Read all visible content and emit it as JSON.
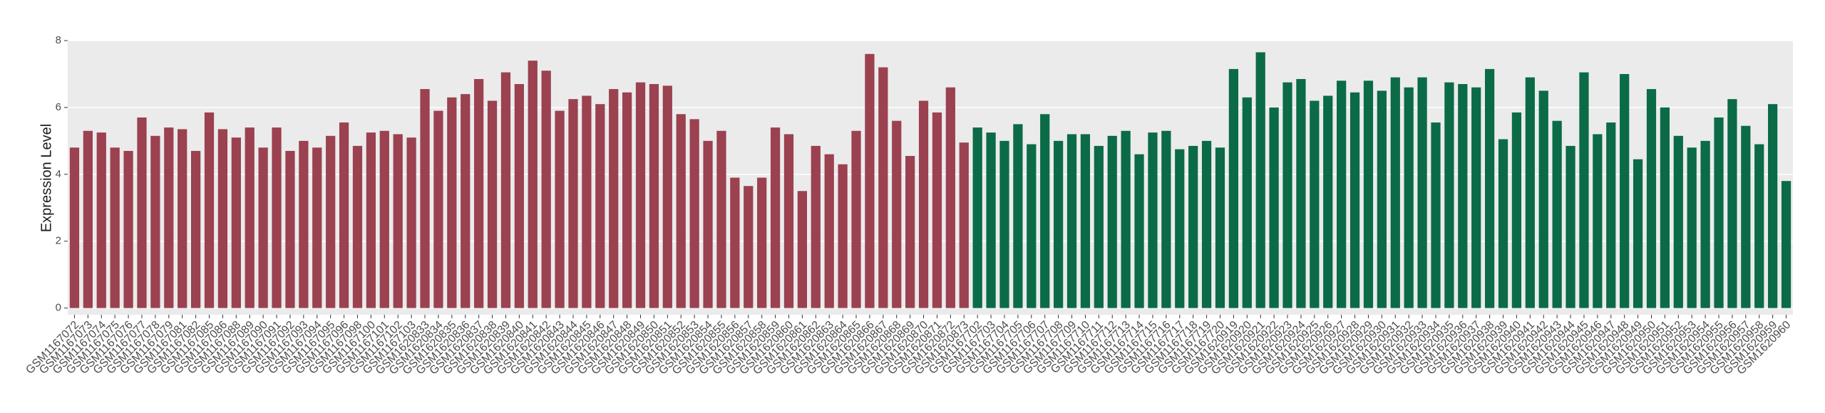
{
  "chart_data": {
    "type": "bar",
    "y_label": "Expression Level",
    "categories": [
      "GSM1167072",
      "GSM1167073",
      "GSM1167074",
      "GSM1167075",
      "GSM1167076",
      "GSM1167077",
      "GSM1167078",
      "GSM1167079",
      "GSM1167081",
      "GSM1167082",
      "GSM1167085",
      "GSM1167086",
      "GSM1167088",
      "GSM1167089",
      "GSM1167090",
      "GSM1167091",
      "GSM1167092",
      "GSM1167093",
      "GSM1167094",
      "GSM1167095",
      "GSM1167096",
      "GSM1167098",
      "GSM1167100",
      "GSM1167101",
      "GSM1167102",
      "GSM1167103",
      "GSM1620833",
      "GSM1620834",
      "GSM1620835",
      "GSM1620836",
      "GSM1620837",
      "GSM1620838",
      "GSM1620839",
      "GSM1620840",
      "GSM1620841",
      "GSM1620842",
      "GSM1620843",
      "GSM1620844",
      "GSM1620845",
      "GSM1620846",
      "GSM1620847",
      "GSM1620848",
      "GSM1620849",
      "GSM1620850",
      "GSM1620851",
      "GSM1620852",
      "GSM1620853",
      "GSM1620854",
      "GSM1620855",
      "GSM1620856",
      "GSM1620857",
      "GSM1620858",
      "GSM1620859",
      "GSM1620860",
      "GSM1620861",
      "GSM1620862",
      "GSM1620863",
      "GSM1620864",
      "GSM1620865",
      "GSM1620866",
      "GSM1620867",
      "GSM1620868",
      "GSM1620869",
      "GSM1620870",
      "GSM1620871",
      "GSM1620872",
      "GSM1620873",
      "GSM1167702",
      "GSM1167703",
      "GSM1167704",
      "GSM1167705",
      "GSM1167706",
      "GSM1167707",
      "GSM1167708",
      "GSM1167709",
      "GSM1167710",
      "GSM1167711",
      "GSM1167712",
      "GSM1167713",
      "GSM1167714",
      "GSM1167715",
      "GSM1167716",
      "GSM1167717",
      "GSM1167718",
      "GSM1167719",
      "GSM1167720",
      "GSM1620919",
      "GSM1620920",
      "GSM1620921",
      "GSM1620922",
      "GSM1620923",
      "GSM1620924",
      "GSM1620925",
      "GSM1620926",
      "GSM1620927",
      "GSM1620928",
      "GSM1620929",
      "GSM1620930",
      "GSM1620931",
      "GSM1620932",
      "GSM1620933",
      "GSM1620934",
      "GSM1620935",
      "GSM1620936",
      "GSM1620937",
      "GSM1620938",
      "GSM1620939",
      "GSM1620940",
      "GSM1620941",
      "GSM1620942",
      "GSM1620943",
      "GSM1620944",
      "GSM1620945",
      "GSM1620946",
      "GSM1620947",
      "GSM1620948",
      "GSM1620949",
      "GSM1620950",
      "GSM1620951",
      "GSM1620952",
      "GSM1620953",
      "GSM1620954",
      "GSM1620955",
      "GSM1620956",
      "GSM1620957",
      "GSM1620958",
      "GSM1620959",
      "GSM1620960"
    ],
    "series": [
      {
        "color": "#9b4150",
        "values": [
          4.8,
          5.3,
          5.25,
          4.8,
          4.7,
          5.7,
          5.15,
          5.4,
          5.35,
          4.7,
          5.85,
          5.35,
          5.1,
          5.4,
          4.8,
          5.4,
          4.7,
          5.0,
          4.8,
          5.15,
          5.55,
          4.85,
          5.25,
          5.3,
          5.2,
          5.1,
          6.55,
          5.9,
          6.3,
          6.4,
          6.85,
          6.2,
          7.05,
          6.7,
          7.4,
          7.1,
          5.9,
          6.25,
          6.35,
          6.1,
          6.55,
          6.45,
          6.75,
          6.7,
          6.65,
          5.8,
          5.65,
          5.0,
          5.3,
          3.9,
          3.65,
          3.9,
          5.4,
          5.2,
          3.5,
          4.85,
          4.6,
          4.3,
          5.3,
          7.6,
          7.2,
          5.6,
          4.55,
          6.2,
          5.85,
          6.6,
          4.95,
          null,
          null,
          null,
          null,
          null,
          null,
          null,
          null,
          null,
          null,
          null,
          null,
          null,
          null,
          null,
          null,
          null,
          null,
          null,
          null,
          null,
          null,
          null,
          null,
          null,
          null,
          null,
          null,
          null,
          null,
          null,
          null,
          null,
          null,
          null,
          null,
          null,
          null,
          null,
          null,
          null,
          null,
          null,
          null,
          null,
          null,
          null,
          null,
          null,
          null,
          null,
          null,
          null,
          null,
          null,
          null,
          null,
          null,
          null,
          null,
          null
        ]
      },
      {
        "color": "#0b6b47",
        "values": [
          null,
          null,
          null,
          null,
          null,
          null,
          null,
          null,
          null,
          null,
          null,
          null,
          null,
          null,
          null,
          null,
          null,
          null,
          null,
          null,
          null,
          null,
          null,
          null,
          null,
          null,
          null,
          null,
          null,
          null,
          null,
          null,
          null,
          null,
          null,
          null,
          null,
          null,
          null,
          null,
          null,
          null,
          null,
          null,
          null,
          null,
          null,
          null,
          null,
          null,
          null,
          null,
          null,
          null,
          null,
          null,
          null,
          null,
          null,
          null,
          null,
          null,
          null,
          null,
          null,
          null,
          null,
          5.4,
          5.25,
          5.0,
          5.5,
          4.9,
          5.8,
          5.0,
          5.2,
          5.2,
          4.85,
          5.15,
          5.3,
          4.6,
          5.25,
          5.3,
          4.75,
          4.85,
          5.0,
          4.8,
          7.15,
          6.3,
          7.65,
          6.0,
          6.75,
          6.85,
          6.2,
          6.35,
          6.8,
          6.45,
          6.8,
          6.5,
          6.9,
          6.6,
          6.9,
          5.55,
          6.75,
          6.7,
          6.6,
          7.15,
          5.05,
          5.85,
          6.9,
          6.5,
          5.6,
          4.85,
          7.05,
          5.2,
          5.55,
          7.0,
          4.45,
          6.55,
          6.0,
          5.15,
          4.8,
          5.0,
          5.7,
          6.25,
          5.45,
          4.9,
          6.1,
          3.8
        ]
      }
    ],
    "ylim": [
      -0.2,
      8
    ],
    "yticks": [
      0,
      2,
      4,
      6,
      8
    ],
    "grid": true
  }
}
